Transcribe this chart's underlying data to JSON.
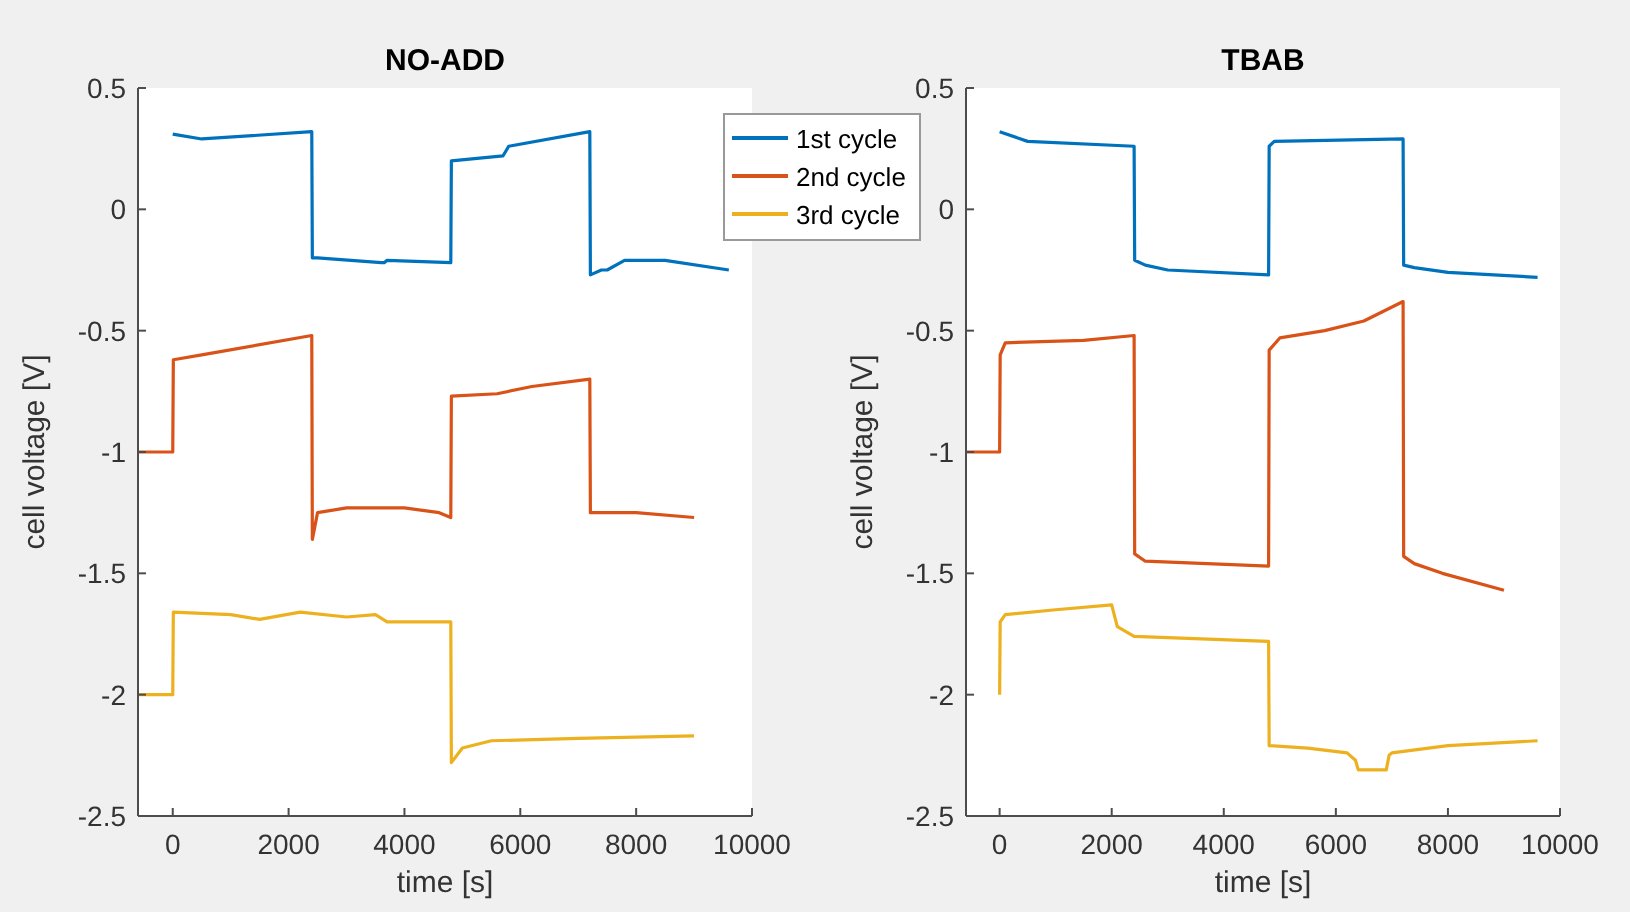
{
  "chart_data": [
    {
      "type": "line",
      "title": "NO-ADD",
      "xlabel": "time [s]",
      "ylabel": "cell voltage [V]",
      "xlim": [
        -600,
        10000
      ],
      "ylim": [
        -2.5,
        0.5
      ],
      "xticks": [
        0,
        2000,
        4000,
        6000,
        8000,
        10000
      ],
      "yticks": [
        -2.5,
        -2,
        -1.5,
        -1,
        -0.5,
        0,
        0.5
      ],
      "grid": false,
      "legend": "right",
      "line_style": "solid",
      "marker": "none",
      "series": [
        {
          "name": "1st cycle",
          "color": "#0072bd",
          "x": [
            0,
            500,
            2400,
            2410,
            2500,
            3600,
            3650,
            3700,
            4800,
            4810,
            5700,
            5800,
            7200,
            7210,
            7400,
            7500,
            7800,
            8500,
            9600
          ],
          "values": [
            0.31,
            0.29,
            0.32,
            -0.2,
            -0.2,
            -0.22,
            -0.22,
            -0.21,
            -0.22,
            0.2,
            0.22,
            0.26,
            0.32,
            -0.27,
            -0.25,
            -0.25,
            -0.21,
            -0.21,
            -0.25
          ]
        },
        {
          "name": "2nd cycle",
          "color": "#d95319",
          "x": [
            -600,
            0,
            10,
            500,
            2400,
            2410,
            2500,
            3000,
            4000,
            4600,
            4800,
            4810,
            5600,
            6200,
            7200,
            7210,
            8000,
            9000
          ],
          "values": [
            -1.0,
            -1.0,
            -0.62,
            -0.6,
            -0.52,
            -1.36,
            -1.25,
            -1.23,
            -1.23,
            -1.25,
            -1.27,
            -0.77,
            -0.76,
            -0.73,
            -0.7,
            -1.25,
            -1.25,
            -1.27
          ]
        },
        {
          "name": "3rd cycle",
          "color": "#edb120",
          "x": [
            -600,
            0,
            10,
            1000,
            1500,
            2200,
            3000,
            3500,
            3700,
            4800,
            4810,
            5000,
            5500,
            7000,
            9000
          ],
          "values": [
            -2.0,
            -2.0,
            -1.66,
            -1.67,
            -1.69,
            -1.66,
            -1.68,
            -1.67,
            -1.7,
            -1.7,
            -2.28,
            -2.22,
            -2.19,
            -2.18,
            -2.17
          ]
        }
      ]
    },
    {
      "type": "line",
      "title": "TBAB",
      "xlabel": "time [s]",
      "ylabel": "cell voltage [V]",
      "xlim": [
        -600,
        10000
      ],
      "ylim": [
        -2.5,
        0.5
      ],
      "xticks": [
        0,
        2000,
        4000,
        6000,
        8000,
        10000
      ],
      "yticks": [
        -2.5,
        -2,
        -1.5,
        -1,
        -0.5,
        0,
        0.5
      ],
      "grid": false,
      "line_style": "solid",
      "marker": "none",
      "series": [
        {
          "color": "#0072bd",
          "x": [
            0,
            500,
            2400,
            2410,
            2600,
            3000,
            4800,
            4810,
            4900,
            7200,
            7210,
            7400,
            8000,
            9600
          ],
          "values": [
            0.32,
            0.28,
            0.26,
            -0.21,
            -0.23,
            -0.25,
            -0.27,
            0.26,
            0.28,
            0.29,
            -0.23,
            -0.24,
            -0.26,
            -0.28
          ]
        },
        {
          "color": "#d95319",
          "x": [
            -600,
            0,
            10,
            100,
            1500,
            2400,
            2410,
            2600,
            4800,
            4810,
            5000,
            5800,
            6500,
            7200,
            7210,
            7400,
            7900,
            9000
          ],
          "values": [
            -1.0,
            -1.0,
            -0.6,
            -0.55,
            -0.54,
            -0.52,
            -1.42,
            -1.45,
            -1.47,
            -0.58,
            -0.53,
            -0.5,
            -0.46,
            -0.38,
            -1.43,
            -1.46,
            -1.5,
            -1.57
          ]
        },
        {
          "color": "#edb120",
          "x": [
            0,
            10,
            100,
            1000,
            2000,
            2100,
            2400,
            4800,
            4810,
            5500,
            6200,
            6350,
            6400,
            6900,
            6950,
            7000,
            8000,
            9600
          ],
          "values": [
            -2.0,
            -1.7,
            -1.67,
            -1.65,
            -1.63,
            -1.72,
            -1.76,
            -1.78,
            -2.21,
            -2.22,
            -2.24,
            -2.27,
            -2.31,
            -2.31,
            -2.25,
            -2.24,
            -2.21,
            -2.19
          ]
        }
      ]
    }
  ]
}
